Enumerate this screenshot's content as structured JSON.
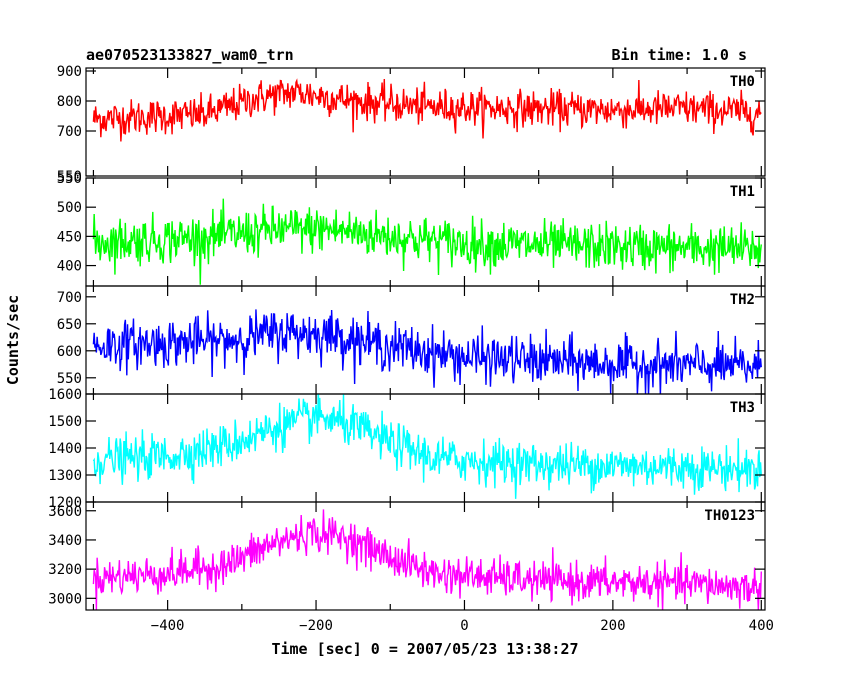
{
  "header": {
    "title": "ae070523133827_wam0_trn",
    "bin_time": "Bin time: 1.0 s"
  },
  "chart_data": {
    "type": "line",
    "xlabel": "Time [sec] 0 = 2007/05/23 13:38:27",
    "ylabel": "Counts/sec",
    "xlim": [
      -510,
      405
    ],
    "x_ticks": [
      -400,
      -200,
      0,
      200,
      400
    ],
    "x_tick_labels": [
      "−400",
      "−200",
      "0",
      "200",
      "400"
    ],
    "x_data_range": [
      -500,
      400
    ],
    "bin_seconds": 1.0,
    "panels": [
      {
        "label": "TH0",
        "color": "#ff0000",
        "ylim": [
          550,
          910
        ],
        "y_ticks": [
          550,
          700,
          800,
          900
        ],
        "y_tick_labels": [
          "550",
          "700",
          "800",
          "900"
        ],
        "trend": [
          [
            -500,
            740
          ],
          [
            -350,
            755
          ],
          [
            -280,
            810
          ],
          [
            -230,
            830
          ],
          [
            -150,
            800
          ],
          [
            -50,
            780
          ],
          [
            200,
            770
          ],
          [
            300,
            775
          ],
          [
            400,
            760
          ]
        ],
        "noise_sd": 30
      },
      {
        "label": "TH1",
        "color": "#00ff00",
        "ylim": [
          365,
          550
        ],
        "y_ticks": [
          400,
          450,
          500,
          550
        ],
        "y_tick_labels": [
          "400",
          "450",
          "500",
          "550"
        ],
        "trend": [
          [
            -500,
            440
          ],
          [
            -350,
            448
          ],
          [
            -250,
            462
          ],
          [
            -180,
            462
          ],
          [
            -100,
            450
          ],
          [
            0,
            438
          ],
          [
            200,
            432
          ],
          [
            400,
            428
          ]
        ],
        "noise_sd": 20
      },
      {
        "label": "TH2",
        "color": "#0000ff",
        "ylim": [
          520,
          720
        ],
        "y_ticks": [
          550,
          600,
          650,
          700
        ],
        "y_tick_labels": [
          "550",
          "600",
          "650",
          "700"
        ],
        "trend": [
          [
            -500,
            610
          ],
          [
            -330,
            618
          ],
          [
            -240,
            635
          ],
          [
            -180,
            630
          ],
          [
            -100,
            608
          ],
          [
            0,
            588
          ],
          [
            200,
            575
          ],
          [
            400,
            570
          ]
        ],
        "noise_sd": 22
      },
      {
        "label": "TH3",
        "color": "#00ffff",
        "ylim": [
          1200,
          1600
        ],
        "y_ticks": [
          1200,
          1300,
          1400,
          1500,
          1600
        ],
        "y_tick_labels": [
          "1200",
          "1300",
          "1400",
          "1500",
          "1600"
        ],
        "trend": [
          [
            -500,
            1355
          ],
          [
            -400,
            1370
          ],
          [
            -320,
            1410
          ],
          [
            -250,
            1480
          ],
          [
            -200,
            1515
          ],
          [
            -160,
            1490
          ],
          [
            -100,
            1420
          ],
          [
            -40,
            1360
          ],
          [
            100,
            1340
          ],
          [
            300,
            1330
          ],
          [
            400,
            1320
          ]
        ],
        "noise_sd": 40
      },
      {
        "label": "TH0123",
        "color": "#ff00ff",
        "ylim": [
          2920,
          3660
        ],
        "y_ticks": [
          3000,
          3200,
          3400,
          3600
        ],
        "y_tick_labels": [
          "3000",
          "3200",
          "3400",
          "3600"
        ],
        "trend": [
          [
            -500,
            3140
          ],
          [
            -400,
            3170
          ],
          [
            -320,
            3230
          ],
          [
            -260,
            3370
          ],
          [
            -210,
            3450
          ],
          [
            -160,
            3420
          ],
          [
            -100,
            3280
          ],
          [
            -40,
            3170
          ],
          [
            100,
            3120
          ],
          [
            300,
            3100
          ],
          [
            400,
            3070
          ]
        ],
        "noise_sd": 65
      }
    ]
  }
}
